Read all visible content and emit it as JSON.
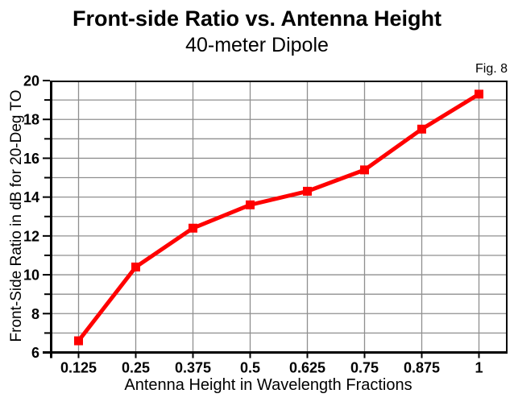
{
  "page": {
    "background": "#ffffff"
  },
  "chart_data": {
    "type": "line",
    "title": "Front-side Ratio vs. Antenna Height",
    "subtitle": "40-meter Dipole",
    "fig_label": "Fig. 8",
    "xlabel": "Antenna Height in Wavelength Fractions",
    "ylabel": "Front-Side Ratio in dB for 20-Deg TO",
    "categories": [
      "0.125",
      "0.25",
      "0.375",
      "0.5",
      "0.625",
      "0.75",
      "0.875",
      "1"
    ],
    "values": [
      6.6,
      10.4,
      12.4,
      13.6,
      14.3,
      15.4,
      17.5,
      19.3
    ],
    "ylim": [
      6,
      20
    ],
    "y_tick_labels": [
      6,
      8,
      10,
      12,
      14,
      16,
      18,
      20
    ],
    "y_minor_tick_step": 1,
    "grid": {
      "horizontal_step": 1,
      "vertical_at_categories": true
    },
    "legend": "none",
    "marker_shape": "square",
    "colors": {
      "series": "#ff0000",
      "grid": "#8f8f8f",
      "axis": "#000000",
      "text": "#000000",
      "background": "#ffffff"
    }
  }
}
